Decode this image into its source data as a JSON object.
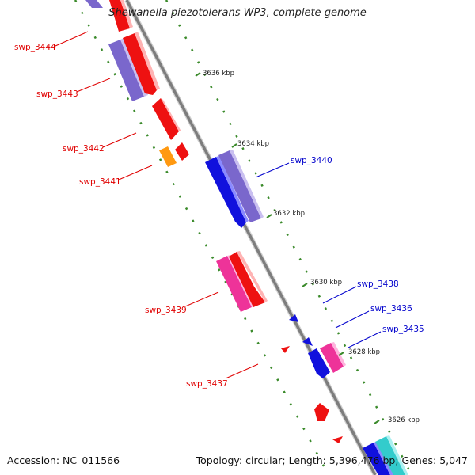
{
  "title": "Shewanella piezotolerans WP3, complete genome",
  "accession": "Accession: NC_011566",
  "summary": "Topology: circular; Length: 5,396,476 bp; Genes: 5,047",
  "colors": {
    "backbone": "#8a8a8a",
    "tickmark": "#3a8a2a",
    "label_red": "#e00000",
    "label_blue": "#0000cc",
    "red": "#ee1111",
    "purple": "#7a67cc",
    "blue": "#1111dd",
    "pink": "#ee3399",
    "orange": "#ff9911",
    "cyan": "#33cccc"
  },
  "ticks": [
    {
      "kbp": 3636,
      "label": "3636 kbp"
    },
    {
      "kbp": 3634,
      "label": "3634 kbp"
    },
    {
      "kbp": 3632,
      "label": "3632 kbp"
    },
    {
      "kbp": 3630,
      "label": "3630 kbp"
    },
    {
      "kbp": 3628,
      "label": "3628 kbp"
    },
    {
      "kbp": 3626,
      "label": "3626 kbp"
    }
  ],
  "gene_labels": [
    {
      "name": "swp_3444",
      "color": "label_red"
    },
    {
      "name": "swp_3443",
      "color": "label_red"
    },
    {
      "name": "swp_3442",
      "color": "label_red"
    },
    {
      "name": "swp_3441",
      "color": "label_red"
    },
    {
      "name": "swp_3440",
      "color": "label_blue"
    },
    {
      "name": "swp_3439",
      "color": "label_red"
    },
    {
      "name": "swp_3438",
      "color": "label_blue"
    },
    {
      "name": "swp_3437",
      "color": "label_red"
    },
    {
      "name": "swp_3436",
      "color": "label_blue"
    },
    {
      "name": "swp_3435",
      "color": "label_blue"
    }
  ]
}
